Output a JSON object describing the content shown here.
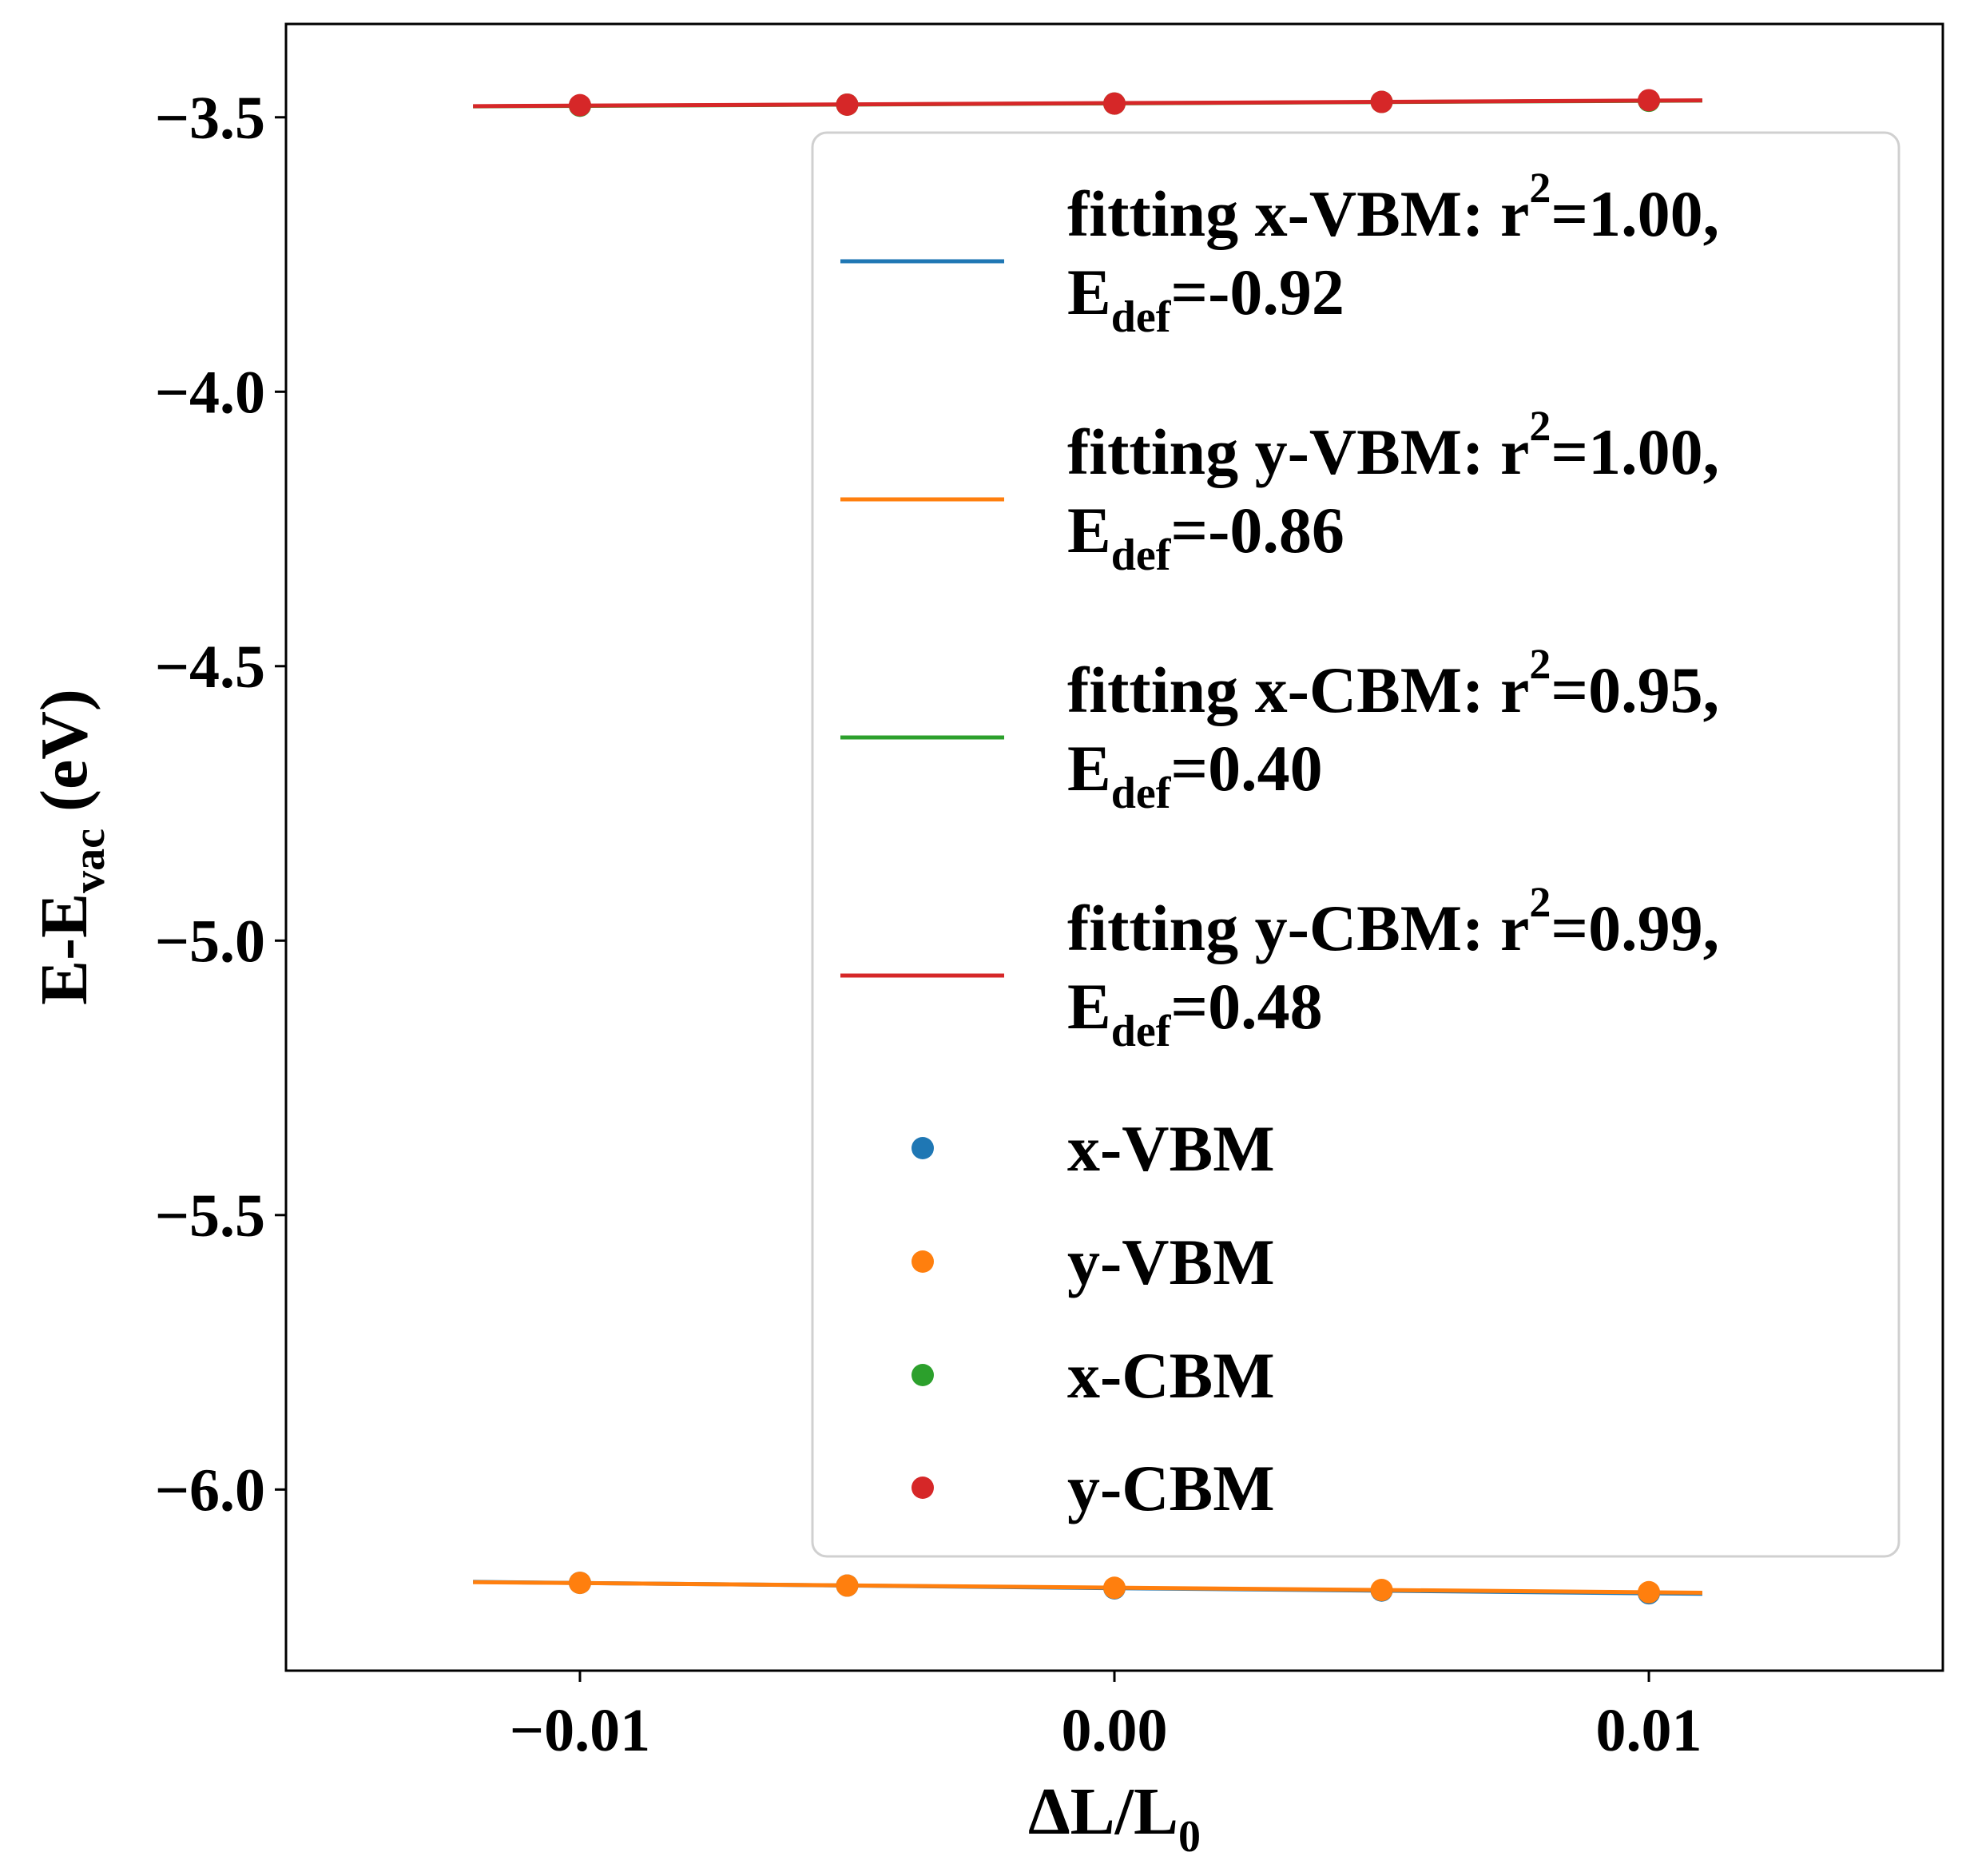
{
  "chart_data": {
    "type": "scatter",
    "xlabel": "ΔL/L",
    "xlabel_sub": "0",
    "ylabel": "E-E",
    "ylabel_sub": "vac",
    "ylabel_unit": " (eV)",
    "xlim": [
      -0.0155,
      0.0155
    ],
    "ylim": [
      -6.33,
      -3.33
    ],
    "x_ticks": [
      -0.01,
      0.0,
      0.01
    ],
    "x_tick_labels": [
      "−0.01",
      "0.00",
      "0.01"
    ],
    "y_ticks": [
      -3.5,
      -4.0,
      -4.5,
      -5.0,
      -5.5,
      -6.0
    ],
    "y_tick_labels": [
      "−3.5",
      "−4.0",
      "−4.5",
      "−5.0",
      "−5.5",
      "−6.0"
    ],
    "fit_x_range": [
      -0.012,
      0.011
    ],
    "series": [
      {
        "name": "x-VBM",
        "color": "#1f77b4",
        "x": [
          -0.01,
          -0.005,
          0.0,
          0.005,
          0.01
        ],
        "y": [
          -6.17,
          -6.175,
          -6.18,
          -6.184,
          -6.189
        ]
      },
      {
        "name": "y-VBM",
        "color": "#ff7f0e",
        "x": [
          -0.01,
          -0.005,
          0.0,
          0.005,
          0.01
        ],
        "y": [
          -6.17,
          -6.175,
          -6.179,
          -6.183,
          -6.187
        ]
      },
      {
        "name": "x-CBM",
        "color": "#2ca02c",
        "x": [
          -0.01,
          -0.005,
          0.0,
          0.005,
          0.01
        ],
        "y": [
          -3.479,
          -3.477,
          -3.475,
          -3.472,
          -3.47
        ]
      },
      {
        "name": "y-CBM",
        "color": "#d62728",
        "x": [
          -0.01,
          -0.005,
          0.0,
          0.005,
          0.01
        ],
        "y": [
          -3.478,
          -3.477,
          -3.475,
          -3.472,
          -3.469
        ]
      }
    ],
    "legend": {
      "placement": "upper right",
      "fits": [
        {
          "color": "#1f77b4",
          "line1_a": "fitting x-VBM: r",
          "line1_sup": "2",
          "line1_b": "=1.00,",
          "line2_a": "E",
          "line2_sub": "def",
          "line2_b": "=-0.92"
        },
        {
          "color": "#ff7f0e",
          "line1_a": "fitting y-VBM: r",
          "line1_sup": "2",
          "line1_b": "=1.00,",
          "line2_a": "E",
          "line2_sub": "def",
          "line2_b": "=-0.86"
        },
        {
          "color": "#2ca02c",
          "line1_a": "fitting x-CBM: r",
          "line1_sup": "2",
          "line1_b": "=0.95,",
          "line2_a": "E",
          "line2_sub": "def",
          "line2_b": "=0.40"
        },
        {
          "color": "#d62728",
          "line1_a": "fitting y-CBM: r",
          "line1_sup": "2",
          "line1_b": "=0.99,",
          "line2_a": "E",
          "line2_sub": "def",
          "line2_b": "=0.48"
        }
      ],
      "points": [
        {
          "label": "x-VBM",
          "color": "#1f77b4"
        },
        {
          "label": "y-VBM",
          "color": "#ff7f0e"
        },
        {
          "label": "x-CBM",
          "color": "#2ca02c"
        },
        {
          "label": "y-CBM",
          "color": "#d62728"
        }
      ]
    },
    "grid": false
  }
}
